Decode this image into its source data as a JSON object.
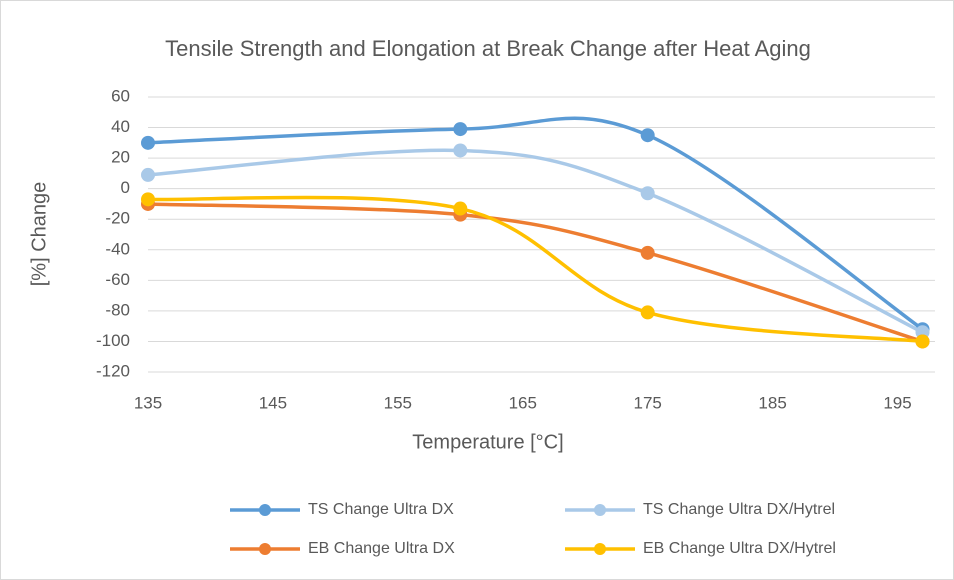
{
  "chart_data": {
    "type": "line",
    "title": "Tensile Strength and Elongation at Break Change after Heat Aging",
    "xlabel": "Temperature [°C]",
    "ylabel": "[%] Change",
    "x": [
      135,
      160,
      175,
      197
    ],
    "series": [
      {
        "name": "TS Change Ultra DX",
        "color": "#5b9bd5",
        "values": [
          30,
          39,
          35,
          -92
        ]
      },
      {
        "name": "TS Change Ultra DX/Hytrel",
        "color": "#a9c9e8",
        "values": [
          9,
          25,
          -3,
          -94
        ]
      },
      {
        "name": "EB Change Ultra DX",
        "color": "#ed7d31",
        "values": [
          -10,
          -17,
          -42,
          -100
        ]
      },
      {
        "name": "EB Change Ultra DX/Hytrel",
        "color": "#ffc000",
        "values": [
          -7,
          -13,
          -81,
          -100
        ]
      }
    ],
    "xlim": [
      135,
      198
    ],
    "ylim": [
      -120,
      60
    ],
    "xticks": [
      135,
      145,
      155,
      165,
      175,
      185,
      195
    ],
    "yticks": [
      -120,
      -100,
      -80,
      -60,
      -40,
      -20,
      0,
      20,
      40,
      60
    ],
    "grid": true,
    "smooth": true,
    "legend": "bottom"
  }
}
